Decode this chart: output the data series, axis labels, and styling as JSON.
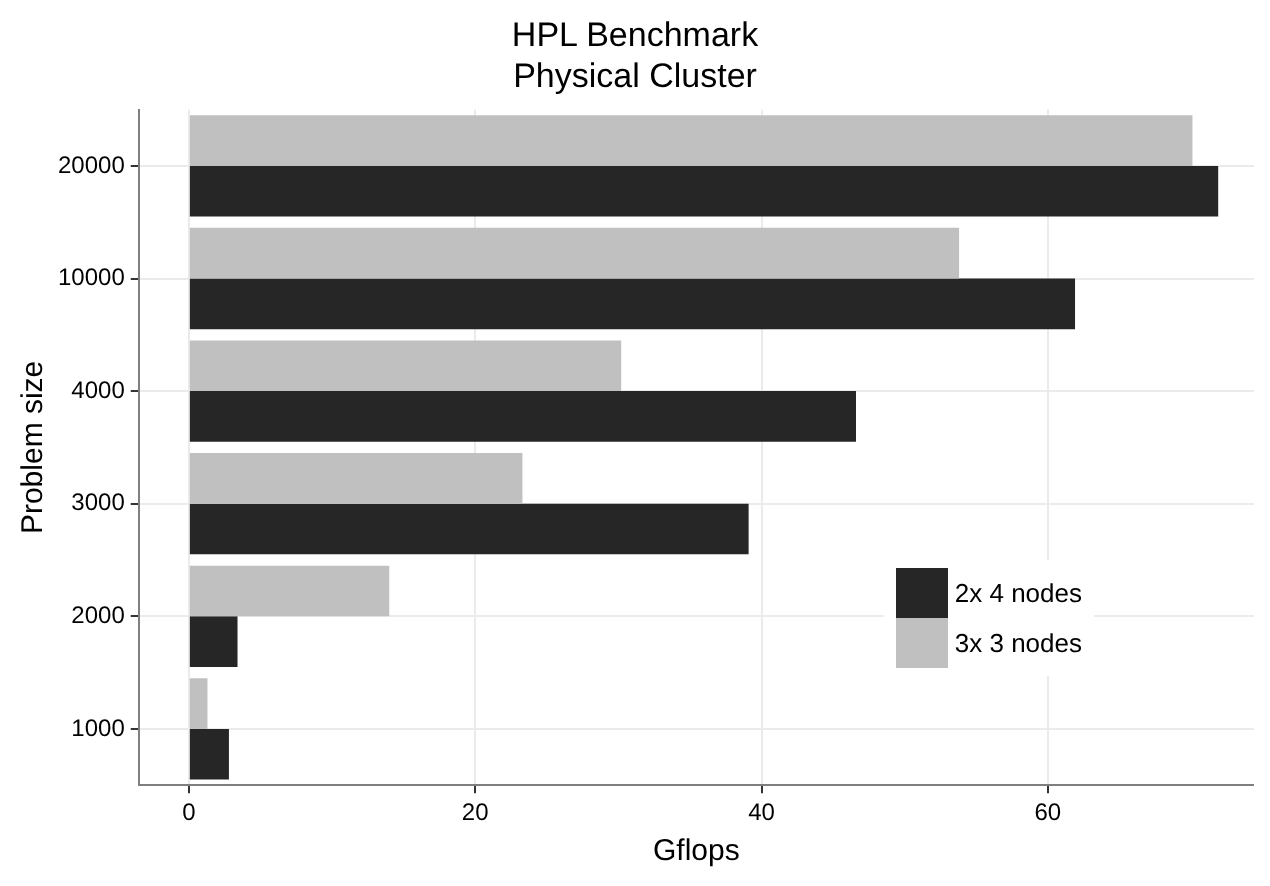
{
  "chart_data": {
    "type": "bar",
    "orientation": "horizontal",
    "title": "HPL Benchmark\nPhysical Cluster",
    "xlabel": "Gflops",
    "ylabel": "Problem size",
    "categories": [
      "20000",
      "10000",
      "4000",
      "3000",
      "2000",
      "1000"
    ],
    "series": [
      {
        "name": "2x 4 nodes",
        "color": "#262626",
        "values": [
          71.9,
          61.9,
          46.6,
          39.1,
          3.4,
          2.8
        ]
      },
      {
        "name": "3x 3 nodes",
        "color": "#c0c0c0",
        "values": [
          70.1,
          53.8,
          30.2,
          23.3,
          14.0,
          1.3
        ]
      }
    ],
    "xlim": [
      -3.5,
      74.4
    ],
    "xticks": [
      0,
      20,
      40,
      60
    ],
    "grid": true,
    "legend": "bottom right"
  }
}
